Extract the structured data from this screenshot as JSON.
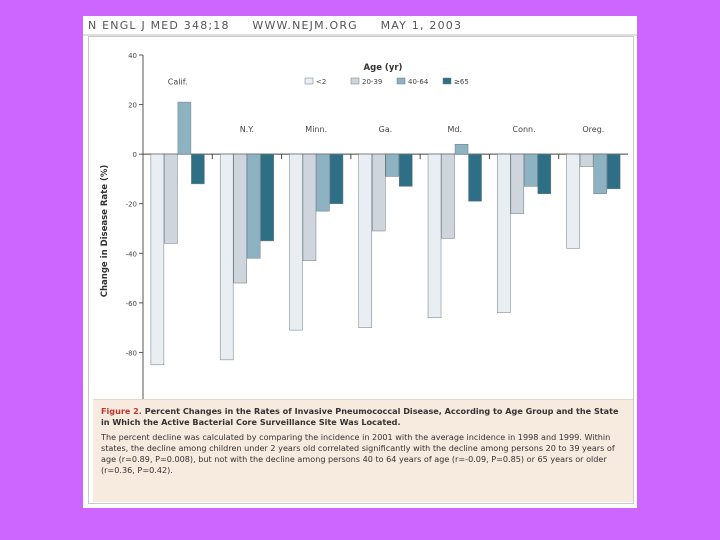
{
  "header": {
    "journal": "N ENGL J MED 348;18",
    "url": "WWW.NEJM.ORG",
    "date": "MAY 1, 2003"
  },
  "chart_data": {
    "type": "bar",
    "title": "",
    "xlabel": "",
    "ylabel": "Change in Disease Rate (%)",
    "ylim": [
      -100,
      40
    ],
    "yticks": [
      "40",
      "20",
      "0",
      "-20",
      "-40",
      "-60",
      "-80",
      "-100"
    ],
    "grid": false,
    "legend": {
      "title": "Age (yr)",
      "placement": "top-center",
      "entries": [
        "<2",
        "20-39",
        "40-64",
        "≥65"
      ]
    },
    "categories": [
      "Calif.",
      "N.Y.",
      "Minn.",
      "Ga.",
      "Md.",
      "Conn.",
      "Oreg."
    ],
    "series": [
      {
        "name": "<2",
        "color": "#e8eef2",
        "values": [
          -85,
          -83,
          -71,
          -70,
          -66,
          -64,
          -38
        ]
      },
      {
        "name": "20-39",
        "color": "#cfd5dc",
        "values": [
          -36,
          -52,
          -43,
          -31,
          -34,
          -24,
          -5
        ]
      },
      {
        "name": "40-64",
        "color": "#8db3c3",
        "values": [
          21,
          -42,
          -23,
          -9,
          4,
          -13,
          -16
        ]
      },
      {
        "name": "≥65",
        "color": "#2f6f86",
        "values": [
          -12,
          -35,
          -20,
          -13,
          -19,
          -16,
          -14
        ]
      }
    ]
  },
  "caption": {
    "label": "Figure 2.",
    "title": "Percent Changes in the Rates of Invasive Pneumococcal Disease, According to Age Group and the State in Which the Active Bacterial Core Surveillance Site Was Located.",
    "body": "The percent decline was calculated by comparing the incidence in 2001 with the average incidence in 1998 and 1999. Within states, the decline among children under 2 years old correlated significantly with the decline among persons 20 to 39 years of age (r=0.89, P=0.008), but not with the decline among persons 40 to 64 years of age (r=-0.09, P=0.85) or 65 years or older (r=0.36, P=0.42)."
  }
}
